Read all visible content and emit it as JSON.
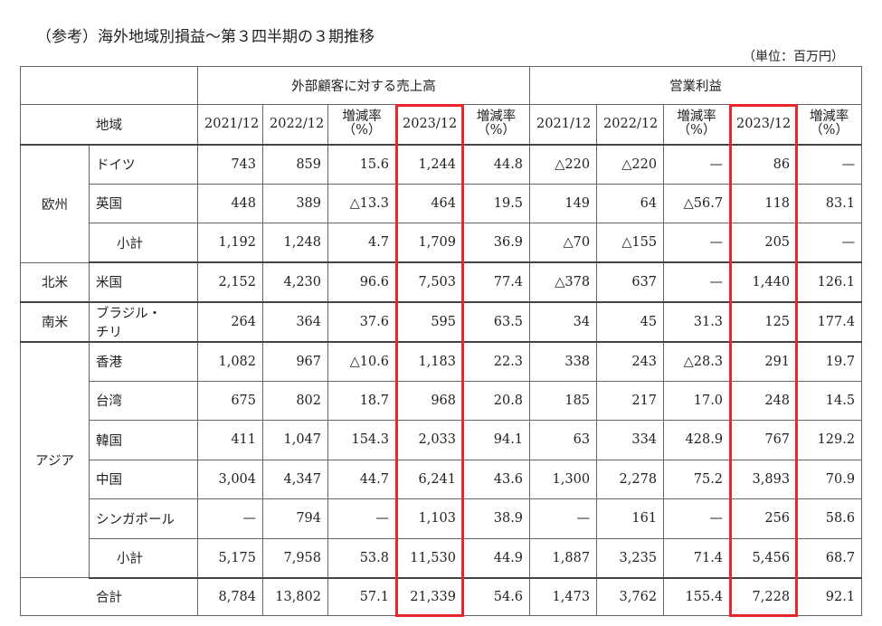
{
  "title": "（参考）海外地域別損益～第３四半期の３期推移",
  "unit": "（単位：百万円）",
  "table": {
    "group_headers": [
      "外部顧客に対する売上高",
      "営業利益"
    ],
    "region_header": "地域",
    "columns": [
      "2021/12",
      "2022/12",
      "増減率\n（%）",
      "2023/12",
      "増減率\n（%）",
      "2021/12",
      "2022/12",
      "増減率\n（%）",
      "2023/12",
      "増減率\n（%）"
    ],
    "regions": [
      {
        "name": "欧州",
        "rows": [
          {
            "name": "ドイツ",
            "values": [
              "743",
              "859",
              "15.6",
              "1,244",
              "44.8",
              "△220",
              "△220",
              "—",
              "86",
              "—"
            ]
          },
          {
            "name": "英国",
            "values": [
              "448",
              "389",
              "△13.3",
              "464",
              "19.5",
              "149",
              "64",
              "△56.7",
              "118",
              "83.1"
            ]
          },
          {
            "name": "小計",
            "values": [
              "1,192",
              "1,248",
              "4.7",
              "1,709",
              "36.9",
              "△70",
              "△155",
              "—",
              "205",
              "—"
            ]
          }
        ]
      },
      {
        "name": "北米",
        "rows": [
          {
            "name": "米国",
            "values": [
              "2,152",
              "4,230",
              "96.6",
              "7,503",
              "77.4",
              "△378",
              "637",
              "—",
              "1,440",
              "126.1"
            ]
          }
        ]
      },
      {
        "name": "南米",
        "rows": [
          {
            "name": "ブラジル・\nチリ",
            "values": [
              "264",
              "364",
              "37.6",
              "595",
              "63.5",
              "34",
              "45",
              "31.3",
              "125",
              "177.4"
            ]
          }
        ]
      },
      {
        "name": "アジア",
        "rows": [
          {
            "name": "香港",
            "values": [
              "1,082",
              "967",
              "△10.6",
              "1,183",
              "22.3",
              "338",
              "243",
              "△28.3",
              "291",
              "19.7"
            ]
          },
          {
            "name": "台湾",
            "values": [
              "675",
              "802",
              "18.7",
              "968",
              "20.8",
              "185",
              "217",
              "17.0",
              "248",
              "14.5"
            ]
          },
          {
            "name": "韓国",
            "values": [
              "411",
              "1,047",
              "154.3",
              "2,033",
              "94.1",
              "63",
              "334",
              "428.9",
              "767",
              "129.2"
            ]
          },
          {
            "name": "中国",
            "values": [
              "3,004",
              "4,347",
              "44.7",
              "6,241",
              "43.6",
              "1,300",
              "2,278",
              "75.2",
              "3,893",
              "70.9"
            ]
          },
          {
            "name": "シンガポール",
            "values": [
              "—",
              "794",
              "—",
              "1,103",
              "38.9",
              "—",
              "161",
              "—",
              "256",
              "58.6"
            ]
          },
          {
            "name": "小計",
            "values": [
              "5,175",
              "7,958",
              "53.8",
              "11,530",
              "44.9",
              "1,887",
              "3,235",
              "71.4",
              "5,456",
              "68.7"
            ]
          }
        ]
      }
    ],
    "total": {
      "name": "合計",
      "values": [
        "8,784",
        "13,802",
        "57.1",
        "21,339",
        "54.6",
        "1,473",
        "3,762",
        "155.4",
        "7,228",
        "92.1"
      ]
    }
  }
}
